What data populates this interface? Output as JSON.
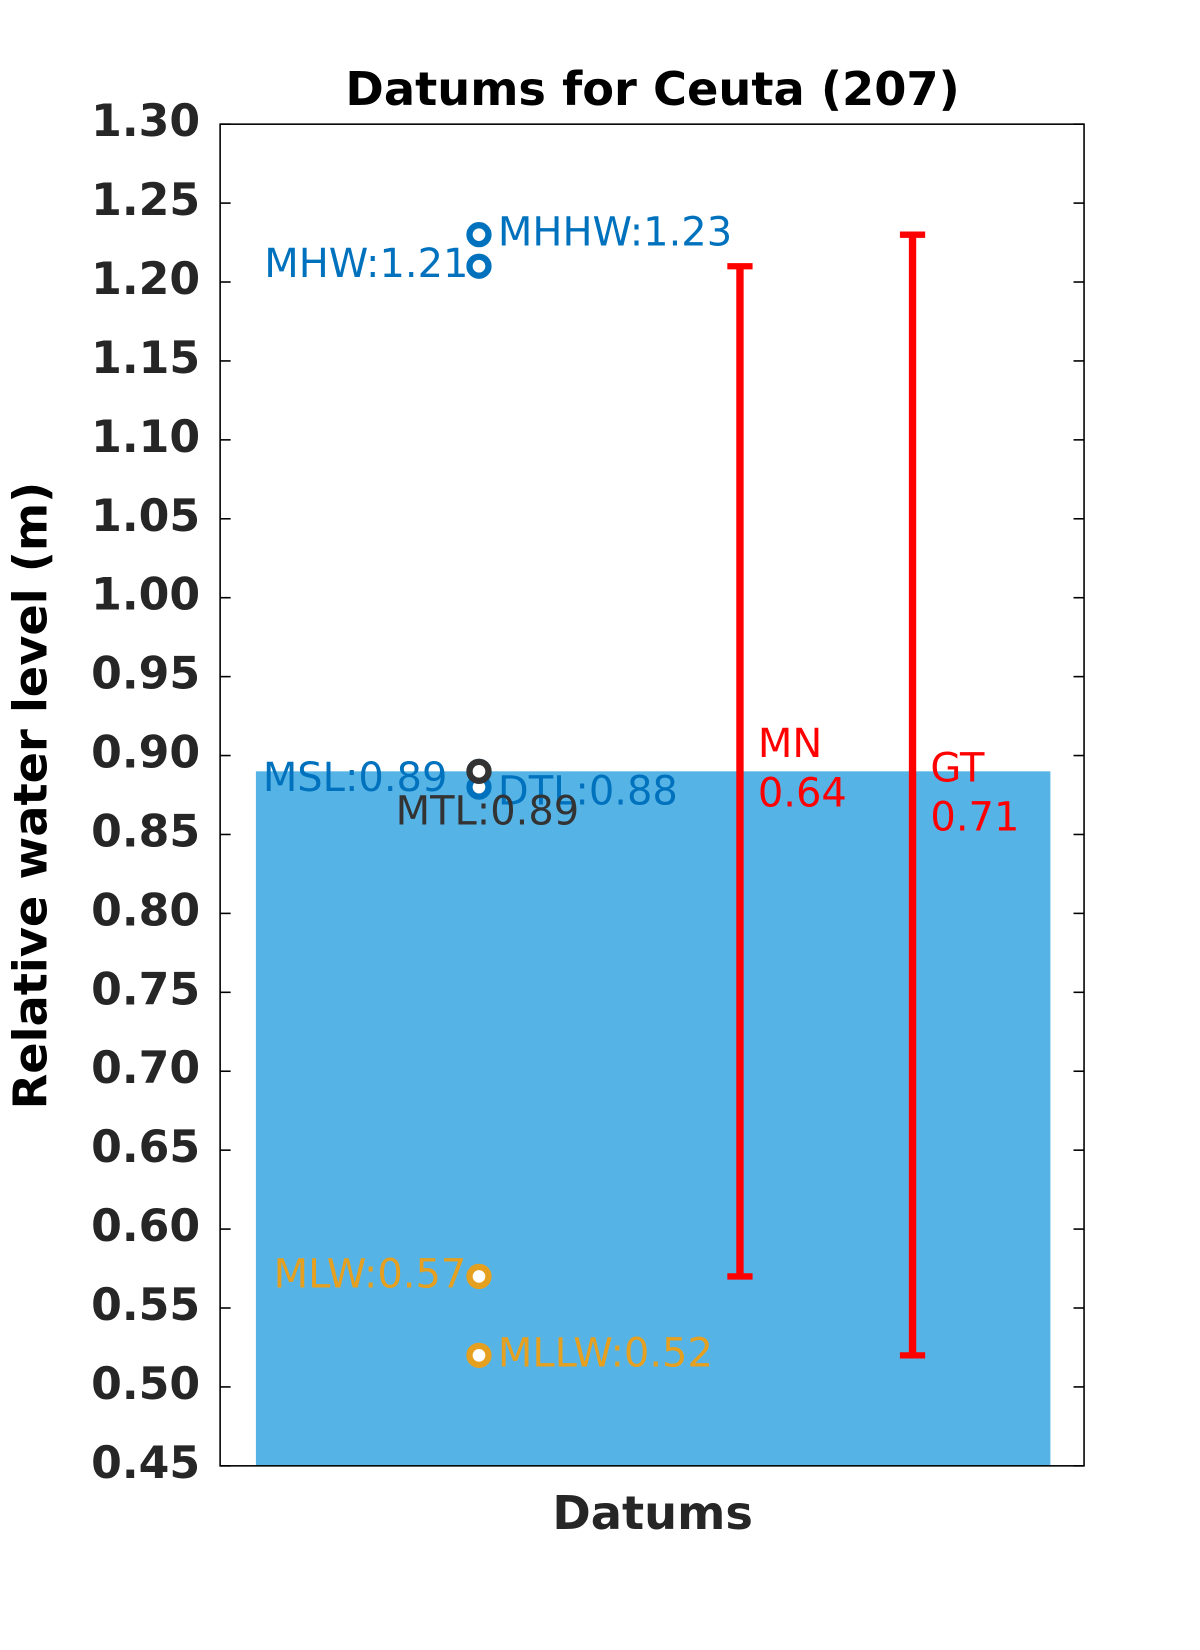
{
  "chart_data": {
    "type": "datum",
    "title": "Datums for Ceuta (207)",
    "xlabel": "Datums",
    "ylabel": "Relative water level (m)",
    "ylim": [
      0.45,
      1.3
    ],
    "yticks": [
      0.45,
      {
        "value": 0.5,
        "label": "0.50"
      },
      0.55,
      {
        "value": 0.6,
        "label": "0.60"
      },
      0.65,
      {
        "value": 0.7,
        "label": "0.70"
      },
      0.75,
      {
        "value": 0.8,
        "label": "0.80"
      },
      0.85,
      {
        "value": 0.9,
        "label": "0.90"
      },
      0.95,
      {
        "value": 1.0,
        "label": "1.00"
      },
      1.05,
      {
        "value": 1.1,
        "label": "1.10"
      },
      1.15,
      {
        "value": 1.2,
        "label": "1.20"
      },
      1.25,
      {
        "value": 1.3,
        "label": "1.30"
      }
    ],
    "bar": {
      "value": 0.89,
      "color": "#56b3e6"
    },
    "points": {
      "values": [
        1.23,
        1.21,
        0.89,
        0.88,
        0.89,
        0.57,
        0.52
      ],
      "value_labels": [
        "MHHW:1.23",
        "MHW:1.21",
        "MSL:0.89",
        "DTL:0.88",
        "MTL:0.89",
        "MLW:0.57",
        "MLLW:0.52"
      ],
      "colors": [
        "#0072bd",
        "#0072bd",
        "#0072bd",
        "#0072bd",
        "#333333",
        "#e6a020",
        "#e6a020"
      ]
    },
    "ranges": [
      {
        "name": "MN",
        "low": 0.57,
        "high": 1.21,
        "value": 0.64,
        "color": "#ff0000"
      },
      {
        "name": "GT",
        "low": 0.52,
        "high": 1.23,
        "value": 0.71,
        "color": "#ff0000"
      }
    ]
  }
}
